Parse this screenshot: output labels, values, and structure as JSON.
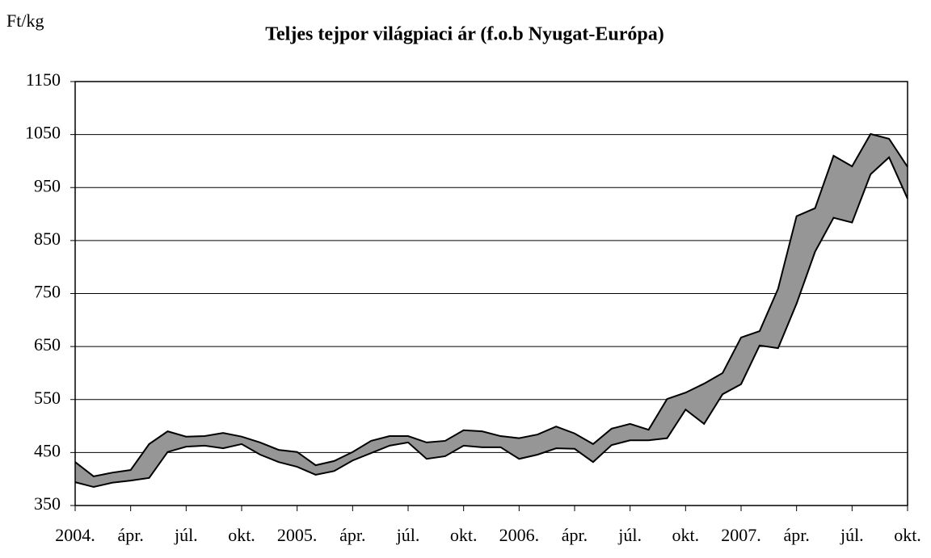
{
  "chart_data": {
    "type": "band",
    "title": "Teljes tejpor világpiaci ár (f.o.b Nyugat-Európa)",
    "y_label": "Ft/kg",
    "categories": [
      "2004.",
      null,
      null,
      "ápr.",
      null,
      null,
      "júl.",
      null,
      null,
      "okt.",
      null,
      null,
      "2005.",
      null,
      null,
      "ápr.",
      null,
      null,
      "júl.",
      null,
      null,
      "okt.",
      null,
      null,
      "2006.",
      null,
      null,
      "ápr.",
      null,
      null,
      "júl.",
      null,
      null,
      "okt.",
      null,
      null,
      "2007.",
      null,
      null,
      "ápr.",
      null,
      null,
      "júl.",
      null,
      null,
      "okt."
    ],
    "series": [
      {
        "color": "#000000",
        "values": [
          432,
          405,
          412,
          417,
          466,
          490,
          480,
          481,
          487,
          480,
          469,
          455,
          451,
          426,
          434,
          451,
          472,
          481,
          481,
          469,
          472,
          492,
          490,
          481,
          477,
          484,
          499,
          486,
          466,
          495,
          504,
          493,
          551,
          563,
          580,
          600,
          667,
          679,
          759,
          896,
          911,
          1010,
          990,
          1051,
          1042,
          989
        ]
      },
      {
        "color": "#000000",
        "values": [
          394,
          385,
          393,
          397,
          402,
          451,
          461,
          463,
          458,
          466,
          446,
          432,
          423,
          408,
          415,
          435,
          449,
          463,
          469,
          438,
          443,
          463,
          460,
          460,
          438,
          446,
          458,
          457,
          432,
          464,
          473,
          473,
          477,
          531,
          504,
          560,
          579,
          652,
          647,
          731,
          829,
          893,
          884,
          975,
          1007,
          929
        ]
      }
    ],
    "fill": "#969696",
    "ylim": [
      350,
      1150
    ],
    "yticks": [
      350,
      450,
      550,
      650,
      750,
      850,
      950,
      1050,
      1150
    ],
    "grid": true
  }
}
